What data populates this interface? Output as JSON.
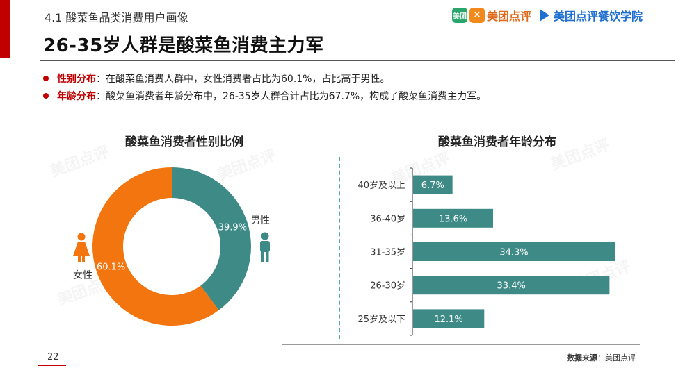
{
  "header": {
    "subtitle": "4.1 酸菜鱼品类消费用户画像",
    "title": "26-35岁人群是酸菜鱼消费主力军",
    "logo1_mark": "美团",
    "logo1_text": "美团点评",
    "logo2_text": "美团点评餐饮学院"
  },
  "bullets": [
    {
      "key": "性别分布",
      "sep": "：",
      "text": "在酸菜鱼消费人群中，女性消费者占比为60.1%，占比高于男性。"
    },
    {
      "key": "年龄分布",
      "sep": "：",
      "text": "酸菜鱼消费者年龄分布中，26-35岁人群合计占比为67.7%，构成了酸菜鱼消费主力军。"
    }
  ],
  "footer": {
    "page": "22",
    "source_label": "数据来源",
    "source_value": "：美团点评"
  },
  "colors": {
    "accent": "#c00000",
    "female": "#f2750f",
    "male": "#3d8a87",
    "bar": "#3d8a87"
  },
  "icons": {
    "female": "female-person-icon",
    "male": "male-person-icon"
  },
  "watermark": "美团点评",
  "chart_data": [
    {
      "type": "pie",
      "title": "酸菜鱼消费者性别比例",
      "categories": [
        "男性",
        "女性"
      ],
      "values": [
        39.9,
        60.1
      ],
      "labels": [
        "39.9%",
        "60.1%"
      ],
      "colors": [
        "#3d8a87",
        "#f2750f"
      ],
      "donut": true
    },
    {
      "type": "bar",
      "orientation": "horizontal",
      "title": "酸菜鱼消费者年龄分布",
      "categories": [
        "40岁及以上",
        "36-40岁",
        "31-35岁",
        "26-30岁",
        "25岁及以下"
      ],
      "values": [
        6.7,
        13.6,
        34.3,
        33.4,
        12.1
      ],
      "labels": [
        "6.7%",
        "13.6%",
        "34.3%",
        "33.4%",
        "12.1%"
      ],
      "color": "#3d8a87"
    }
  ]
}
